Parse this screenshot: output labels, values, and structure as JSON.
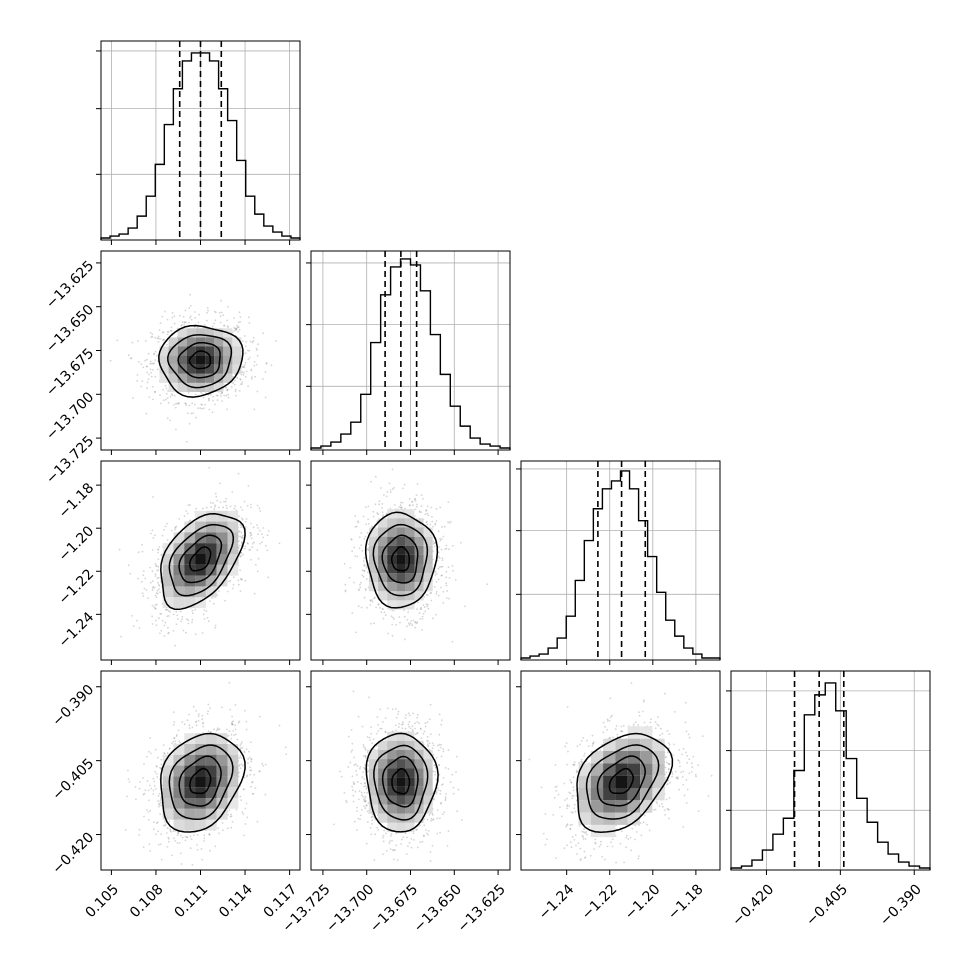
{
  "figure": {
    "type": "corner-plot"
  },
  "chart_data": {
    "type": "corner",
    "parameters": [
      {
        "range": [
          0.1043,
          0.1177
        ],
        "ticks": [
          0.105,
          0.108,
          0.111,
          0.114,
          0.117
        ],
        "tick_labels": [
          "0.105",
          "0.108",
          "0.111",
          "0.114",
          "0.117"
        ],
        "quantiles": [
          0.1096,
          0.111,
          0.1124
        ],
        "hist": [
          1,
          2,
          3,
          6,
          12,
          22,
          38,
          58,
          76,
          90,
          94,
          94,
          90,
          76,
          60,
          40,
          22,
          13,
          7,
          4,
          2,
          1
        ],
        "hist_ymax": 100,
        "hist_yticks": [
          33,
          66,
          95
        ],
        "mean": 0.111,
        "sigma": 0.0014
      },
      {
        "range": [
          -13.7318,
          -13.6182
        ],
        "ticks": [
          -13.725,
          -13.7,
          -13.675,
          -13.65,
          -13.625
        ],
        "tick_labels": [
          "−13.725",
          "−13.700",
          "−13.675",
          "−13.650",
          "−13.625"
        ],
        "y_tick_labels": [
          "−13.725",
          "−13.700",
          "−13.675",
          "−13.650",
          "−13.625"
        ],
        "quantiles": [
          -13.6895,
          -13.6805,
          -13.6715
        ],
        "hist": [
          1,
          2,
          4,
          8,
          14,
          28,
          54,
          78,
          92,
          96,
          93,
          80,
          58,
          38,
          22,
          12,
          6,
          3,
          2,
          1
        ],
        "hist_ymax": 100,
        "hist_yticks": [
          32,
          63,
          94
        ],
        "mean": -13.6805,
        "sigma": 0.01
      },
      {
        "range": [
          -1.2612,
          -1.1688
        ],
        "ticks": [
          -1.24,
          -1.22,
          -1.2,
          -1.18
        ],
        "tick_labels": [
          "−1.24",
          "−1.22",
          "−1.20",
          "−1.18"
        ],
        "y_tick_labels": [
          "−1.24",
          "−1.22",
          "−1.20",
          "−1.18"
        ],
        "quantiles": [
          -1.2255,
          -1.2145,
          -1.2035
        ],
        "hist": [
          1,
          2,
          3,
          6,
          11,
          22,
          40,
          60,
          76,
          86,
          90,
          95,
          86,
          70,
          52,
          34,
          20,
          12,
          6,
          3,
          1,
          1
        ],
        "hist_ymax": 100,
        "hist_yticks": [
          33,
          65,
          96
        ],
        "mean": -1.2145,
        "sigma": 0.011
      },
      {
        "range": [
          -0.4272,
          -0.3868
        ],
        "ticks": [
          -0.42,
          -0.405,
          -0.39
        ],
        "tick_labels": [
          "−0.420",
          "−0.405",
          "−0.390"
        ],
        "y_tick_labels": [
          "−0.420",
          "−0.405",
          "−0.390"
        ],
        "quantiles": [
          -0.4143,
          -0.4093,
          -0.4043
        ],
        "hist": [
          1,
          2,
          5,
          10,
          18,
          26,
          50,
          78,
          88,
          94,
          80,
          56,
          36,
          24,
          14,
          8,
          4,
          2,
          1
        ],
        "hist_ymax": 100,
        "hist_yticks": [
          30,
          60,
          90
        ],
        "mean": -0.4093,
        "sigma": 0.005
      }
    ],
    "correlations": {
      "1-0": 0.05,
      "2-0": 0.45,
      "2-1": 0.0,
      "3-0": 0.25,
      "3-1": 0.0,
      "3-2": 0.35
    },
    "contour_levels": 3,
    "grid": true,
    "quantile_style": "dashed"
  }
}
